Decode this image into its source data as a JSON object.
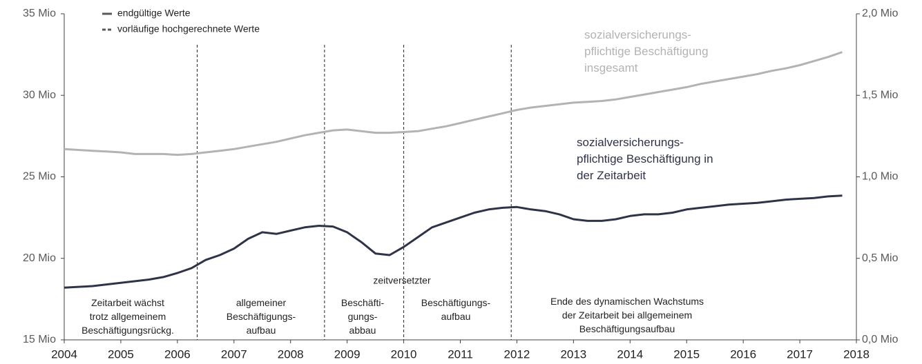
{
  "chart_data": {
    "type": "line",
    "legend": [
      "endgültige Werte",
      "vorläufige hochgerechnete Werte"
    ],
    "xlim": [
      2004,
      2018
    ],
    "xticks": [
      2004,
      2005,
      2006,
      2007,
      2008,
      2009,
      2010,
      2011,
      2012,
      2013,
      2014,
      2015,
      2016,
      2017,
      2018
    ],
    "ylim": [
      15,
      35
    ],
    "yticks": [
      {
        "value": 15,
        "label": "15 Mio"
      },
      {
        "value": 20,
        "label": "20 Mio"
      },
      {
        "value": 25,
        "label": "25 Mio"
      },
      {
        "value": 30,
        "label": "30 Mio"
      },
      {
        "value": 35,
        "label": "35 Mio"
      }
    ],
    "y2lim": [
      0,
      2
    ],
    "y2ticks": [
      {
        "value": 0,
        "label": "0,0 Mio"
      },
      {
        "value": 0.5,
        "label": "0,5 Mio"
      },
      {
        "value": 1,
        "label": "1,0 Mio"
      },
      {
        "value": 1.5,
        "label": "1,5 Mio"
      },
      {
        "value": 2,
        "label": "2,0 Mio"
      }
    ],
    "x": [
      2004,
      2004.25,
      2004.5,
      2004.75,
      2005,
      2005.25,
      2005.5,
      2005.75,
      2006,
      2006.25,
      2006.5,
      2006.75,
      2007,
      2007.25,
      2007.5,
      2007.75,
      2008,
      2008.25,
      2008.5,
      2008.75,
      2009,
      2009.25,
      2009.5,
      2009.75,
      2010,
      2010.25,
      2010.5,
      2010.75,
      2011,
      2011.25,
      2011.5,
      2011.75,
      2012,
      2012.25,
      2012.5,
      2012.75,
      2013,
      2013.25,
      2013.5,
      2013.75,
      2014,
      2014.25,
      2014.5,
      2014.75,
      2015,
      2015.25,
      2015.5,
      2015.75,
      2016,
      2016.25,
      2016.5,
      2016.75,
      2017,
      2017.25,
      2017.5,
      2017.75
    ],
    "series": [
      {
        "name": "sozialversicherungs-\npflichtige Beschäftigung\ninsgesamt",
        "color": "#b3b3b3",
        "values": [
          26.7,
          26.65,
          26.6,
          26.55,
          26.5,
          26.4,
          26.4,
          26.4,
          26.35,
          26.4,
          26.5,
          26.6,
          26.7,
          26.85,
          27.0,
          27.15,
          27.35,
          27.55,
          27.7,
          27.85,
          27.9,
          27.8,
          27.7,
          27.7,
          27.75,
          27.8,
          27.95,
          28.1,
          28.3,
          28.5,
          28.7,
          28.9,
          29.1,
          29.25,
          29.35,
          29.45,
          29.55,
          29.6,
          29.65,
          29.75,
          29.9,
          30.05,
          30.2,
          30.35,
          30.5,
          30.7,
          30.85,
          31.0,
          31.15,
          31.3,
          31.5,
          31.65,
          31.85,
          32.1,
          32.35,
          32.65
        ]
      },
      {
        "name": "sozialversicherungs-\npflichtige Beschäftigung in\nder Zeitarbeit",
        "color": "#2e3347",
        "axis": "y2",
        "values": [
          0.32,
          0.325,
          0.33,
          0.34,
          0.35,
          0.36,
          0.37,
          0.385,
          0.41,
          0.44,
          0.49,
          0.52,
          0.56,
          0.62,
          0.66,
          0.65,
          0.67,
          0.69,
          0.7,
          0.695,
          0.66,
          0.6,
          0.53,
          0.52,
          0.57,
          0.63,
          0.69,
          0.72,
          0.75,
          0.78,
          0.8,
          0.81,
          0.815,
          0.8,
          0.79,
          0.77,
          0.74,
          0.73,
          0.73,
          0.74,
          0.76,
          0.77,
          0.77,
          0.78,
          0.8,
          0.81,
          0.82,
          0.83,
          0.835,
          0.84,
          0.85,
          0.86,
          0.865,
          0.87,
          0.88,
          0.885
        ]
      }
    ],
    "dividers": [
      2006.35,
      2008.6,
      2010,
      2011.9
    ],
    "periods": [
      "Zeitarbeit wächst\ntrotz allgemeinem\nBeschäftigungsrückg.",
      "allgemeiner\nBeschäftigungs-\naufbau",
      "Beschäfti-\ngungs-\nabbau",
      "Beschäftigungs-\naufbau",
      "Ende des dynamischen Wachstums\nder Zeitarbeit bei allgemeinem\nBeschäftigungsaufbau"
    ],
    "annotation": "zeitversetzter"
  }
}
